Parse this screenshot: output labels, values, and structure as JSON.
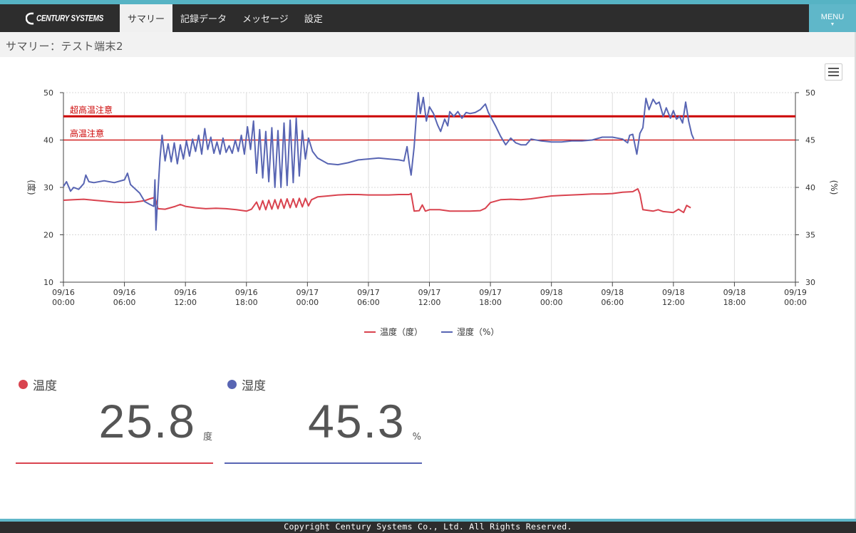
{
  "header": {
    "logo_text": "CENTURY SYSTEMS",
    "tabs": [
      {
        "label": "サマリー",
        "active": true
      },
      {
        "label": "記録データ",
        "active": false
      },
      {
        "label": "メッセージ",
        "active": false
      },
      {
        "label": "設定",
        "active": false
      }
    ],
    "menu_label": "MENU",
    "menu_caret": "▼"
  },
  "page": {
    "title": "サマリー：テスト端末2"
  },
  "colors": {
    "temp": "#d9434f",
    "humid": "#5865b3",
    "accent": "#5fb7c9",
    "threshold": "#cc0000"
  },
  "chart_data": {
    "type": "line",
    "x_ticks": [
      [
        "09/16",
        "00:00"
      ],
      [
        "09/16",
        "06:00"
      ],
      [
        "09/16",
        "12:00"
      ],
      [
        "09/16",
        "18:00"
      ],
      [
        "09/17",
        "00:00"
      ],
      [
        "09/17",
        "06:00"
      ],
      [
        "09/17",
        "12:00"
      ],
      [
        "09/17",
        "18:00"
      ],
      [
        "09/18",
        "00:00"
      ],
      [
        "09/18",
        "06:00"
      ],
      [
        "09/18",
        "12:00"
      ],
      [
        "09/18",
        "18:00"
      ],
      [
        "09/19",
        "00:00"
      ]
    ],
    "x_range_hours": [
      0,
      72
    ],
    "y_left": {
      "label": "(度)",
      "range": [
        10,
        50
      ],
      "ticks": [
        10,
        20,
        30,
        40,
        50
      ]
    },
    "y_right": {
      "label": "(%)",
      "range": [
        30,
        50
      ],
      "ticks": [
        30,
        35,
        40,
        45,
        50
      ]
    },
    "plot_lines": [
      {
        "label": "超高温注意",
        "value": 45,
        "axis": "left",
        "style": "thick"
      },
      {
        "label": "高温注意",
        "value": 40,
        "axis": "left",
        "style": "thin"
      }
    ],
    "series": [
      {
        "name": "温度（度）",
        "axis": "left",
        "points": [
          [
            0,
            27.3
          ],
          [
            1,
            27.4
          ],
          [
            2,
            27.5
          ],
          [
            3,
            27.3
          ],
          [
            4,
            27.1
          ],
          [
            5,
            26.9
          ],
          [
            6,
            26.8
          ],
          [
            7,
            26.9
          ],
          [
            8,
            27.2
          ],
          [
            8.5,
            27.6
          ],
          [
            9,
            27.9
          ],
          [
            9.3,
            25.5
          ],
          [
            10,
            25.4
          ],
          [
            11,
            26.0
          ],
          [
            11.5,
            26.4
          ],
          [
            12,
            26.0
          ],
          [
            13,
            25.7
          ],
          [
            14,
            25.5
          ],
          [
            15,
            25.6
          ],
          [
            16,
            25.5
          ],
          [
            17,
            25.3
          ],
          [
            18,
            25.0
          ],
          [
            18.5,
            25.4
          ],
          [
            19,
            26.9
          ],
          [
            19.3,
            25.3
          ],
          [
            19.6,
            27.2
          ],
          [
            19.9,
            25.3
          ],
          [
            20.2,
            27.3
          ],
          [
            20.5,
            25.4
          ],
          [
            20.8,
            27.4
          ],
          [
            21.1,
            25.5
          ],
          [
            21.4,
            27.5
          ],
          [
            21.7,
            25.6
          ],
          [
            22,
            27.6
          ],
          [
            22.3,
            25.7
          ],
          [
            22.6,
            27.6
          ],
          [
            22.9,
            25.8
          ],
          [
            23.2,
            27.7
          ],
          [
            23.5,
            25.9
          ],
          [
            23.8,
            27.7
          ],
          [
            24.1,
            26.1
          ],
          [
            24.4,
            27.4
          ],
          [
            25,
            28.0
          ],
          [
            26,
            28.2
          ],
          [
            27,
            28.4
          ],
          [
            28,
            28.5
          ],
          [
            29,
            28.5
          ],
          [
            30,
            28.4
          ],
          [
            31,
            28.4
          ],
          [
            32,
            28.4
          ],
          [
            33,
            28.5
          ],
          [
            34,
            28.5
          ],
          [
            34.2,
            28.7
          ],
          [
            34.5,
            25.0
          ],
          [
            35,
            25.1
          ],
          [
            35.3,
            26.3
          ],
          [
            35.6,
            25.0
          ],
          [
            36,
            25.3
          ],
          [
            37,
            25.3
          ],
          [
            38,
            25.0
          ],
          [
            39,
            25.0
          ],
          [
            40,
            25.0
          ],
          [
            41,
            25.1
          ],
          [
            41.5,
            25.6
          ],
          [
            42,
            26.8
          ],
          [
            43,
            27.4
          ],
          [
            44,
            27.5
          ],
          [
            45,
            27.4
          ],
          [
            46,
            27.6
          ],
          [
            47,
            27.9
          ],
          [
            48,
            28.2
          ],
          [
            49,
            28.3
          ],
          [
            50,
            28.4
          ],
          [
            51,
            28.5
          ],
          [
            52,
            28.6
          ],
          [
            53,
            28.6
          ],
          [
            54,
            28.7
          ],
          [
            55,
            29.0
          ],
          [
            56,
            29.1
          ],
          [
            56.5,
            29.7
          ],
          [
            56.7,
            28.6
          ],
          [
            57,
            25.3
          ],
          [
            58,
            25.0
          ],
          [
            58.5,
            25.3
          ],
          [
            59,
            24.9
          ],
          [
            60,
            24.7
          ],
          [
            60.5,
            25.4
          ],
          [
            61,
            24.7
          ],
          [
            61.3,
            26.2
          ],
          [
            61.7,
            25.7
          ]
        ]
      },
      {
        "name": "湿度（%）",
        "axis": "right",
        "points": [
          [
            0,
            40.1
          ],
          [
            0.3,
            40.6
          ],
          [
            0.7,
            39.6
          ],
          [
            1,
            40.0
          ],
          [
            1.5,
            39.8
          ],
          [
            2,
            40.4
          ],
          [
            2.2,
            41.3
          ],
          [
            2.5,
            40.6
          ],
          [
            3,
            40.5
          ],
          [
            4,
            40.7
          ],
          [
            5,
            40.5
          ],
          [
            6,
            40.8
          ],
          [
            6.3,
            41.5
          ],
          [
            6.6,
            40.3
          ],
          [
            7,
            39.9
          ],
          [
            7.5,
            39.4
          ],
          [
            8,
            38.5
          ],
          [
            8.5,
            38.2
          ],
          [
            8.9,
            38.0
          ],
          [
            9.0,
            40.8
          ],
          [
            9.1,
            35.5
          ],
          [
            9.3,
            39.6
          ],
          [
            9.5,
            43.1
          ],
          [
            9.7,
            45.5
          ],
          [
            10,
            42.8
          ],
          [
            10.3,
            44.6
          ],
          [
            10.6,
            42.7
          ],
          [
            10.9,
            44.7
          ],
          [
            11.2,
            42.5
          ],
          [
            11.5,
            44.5
          ],
          [
            11.8,
            43.0
          ],
          [
            12.1,
            44.9
          ],
          [
            12.4,
            43.3
          ],
          [
            12.7,
            45.1
          ],
          [
            13,
            43.8
          ],
          [
            13.3,
            45.5
          ],
          [
            13.6,
            43.5
          ],
          [
            13.9,
            46.2
          ],
          [
            14.2,
            44.0
          ],
          [
            14.5,
            45.3
          ],
          [
            14.8,
            43.6
          ],
          [
            15.1,
            44.8
          ],
          [
            15.4,
            43.5
          ],
          [
            15.7,
            45.2
          ],
          [
            16,
            43.7
          ],
          [
            16.3,
            44.4
          ],
          [
            16.6,
            43.6
          ],
          [
            16.9,
            45.0
          ],
          [
            17.2,
            43.8
          ],
          [
            17.5,
            45.5
          ],
          [
            17.8,
            43.5
          ],
          [
            18.1,
            46.4
          ],
          [
            18.4,
            44.0
          ],
          [
            18.7,
            47.0
          ],
          [
            19.0,
            41.5
          ],
          [
            19.3,
            46.1
          ],
          [
            19.6,
            41.0
          ],
          [
            19.9,
            45.9
          ],
          [
            20.2,
            40.6
          ],
          [
            20.5,
            46.3
          ],
          [
            20.8,
            40.0
          ],
          [
            21.1,
            46.0
          ],
          [
            21.4,
            40.0
          ],
          [
            21.7,
            46.8
          ],
          [
            22,
            40.2
          ],
          [
            22.3,
            47.1
          ],
          [
            22.6,
            40.5
          ],
          [
            22.9,
            47.3
          ],
          [
            23.2,
            41.2
          ],
          [
            23.5,
            46.0
          ],
          [
            23.8,
            43.0
          ],
          [
            24.1,
            45.2
          ],
          [
            24.5,
            43.8
          ],
          [
            25,
            43.1
          ],
          [
            26,
            42.5
          ],
          [
            27,
            42.4
          ],
          [
            28,
            42.6
          ],
          [
            29,
            42.9
          ],
          [
            30,
            43.0
          ],
          [
            31,
            43.1
          ],
          [
            32,
            43.0
          ],
          [
            33,
            42.9
          ],
          [
            33.5,
            42.8
          ],
          [
            33.8,
            44.3
          ],
          [
            34.0,
            42.6
          ],
          [
            34.2,
            41.3
          ],
          [
            34.5,
            44.3
          ],
          [
            34.7,
            47.4
          ],
          [
            34.9,
            50.0
          ],
          [
            35.1,
            47.8
          ],
          [
            35.4,
            49.5
          ],
          [
            35.7,
            47.0
          ],
          [
            36,
            48.5
          ],
          [
            36.4,
            47.8
          ],
          [
            36.8,
            46.6
          ],
          [
            37.1,
            45.9
          ],
          [
            37.5,
            47.2
          ],
          [
            37.8,
            46.5
          ],
          [
            38,
            48.0
          ],
          [
            38.4,
            47.5
          ],
          [
            38.8,
            48.0
          ],
          [
            39.2,
            47.3
          ],
          [
            39.6,
            47.9
          ],
          [
            40,
            47.8
          ],
          [
            40.5,
            47.9
          ],
          [
            41,
            48.2
          ],
          [
            41.5,
            48.8
          ],
          [
            41.8,
            47.9
          ],
          [
            42,
            47.5
          ],
          [
            42.5,
            46.5
          ],
          [
            43,
            45.4
          ],
          [
            43.5,
            44.5
          ],
          [
            44,
            45.2
          ],
          [
            44.5,
            44.7
          ],
          [
            45,
            44.5
          ],
          [
            45.5,
            44.5
          ],
          [
            46,
            45.1
          ],
          [
            47,
            44.9
          ],
          [
            48,
            44.8
          ],
          [
            49,
            44.8
          ],
          [
            50,
            44.9
          ],
          [
            51,
            44.9
          ],
          [
            52,
            45.0
          ],
          [
            53,
            45.3
          ],
          [
            54,
            45.3
          ],
          [
            55,
            45.1
          ],
          [
            55.5,
            44.7
          ],
          [
            55.7,
            45.5
          ],
          [
            56,
            45.6
          ],
          [
            56.4,
            43.5
          ],
          [
            56.7,
            45.7
          ],
          [
            57,
            46.3
          ],
          [
            57.3,
            49.4
          ],
          [
            57.6,
            48.2
          ],
          [
            58,
            49.3
          ],
          [
            58.3,
            48.8
          ],
          [
            58.6,
            49.0
          ],
          [
            59,
            47.5
          ],
          [
            59.3,
            48.4
          ],
          [
            59.7,
            47.3
          ],
          [
            60,
            48.1
          ],
          [
            60.3,
            47.2
          ],
          [
            60.6,
            47.5
          ],
          [
            60.9,
            46.8
          ],
          [
            61.2,
            49.0
          ],
          [
            61.5,
            47.0
          ],
          [
            61.8,
            45.6
          ],
          [
            62,
            45.1
          ]
        ]
      }
    ]
  },
  "legend": {
    "temp_label": "温度（度）",
    "humid_label": "湿度（%）"
  },
  "tiles": [
    {
      "title": "温度",
      "value": "25.8",
      "unit": "度"
    },
    {
      "title": "湿度",
      "value": "45.3",
      "unit": "%"
    }
  ],
  "footer": {
    "copyright": "Copyright Century Systems Co., Ltd. All Rights Reserved."
  }
}
